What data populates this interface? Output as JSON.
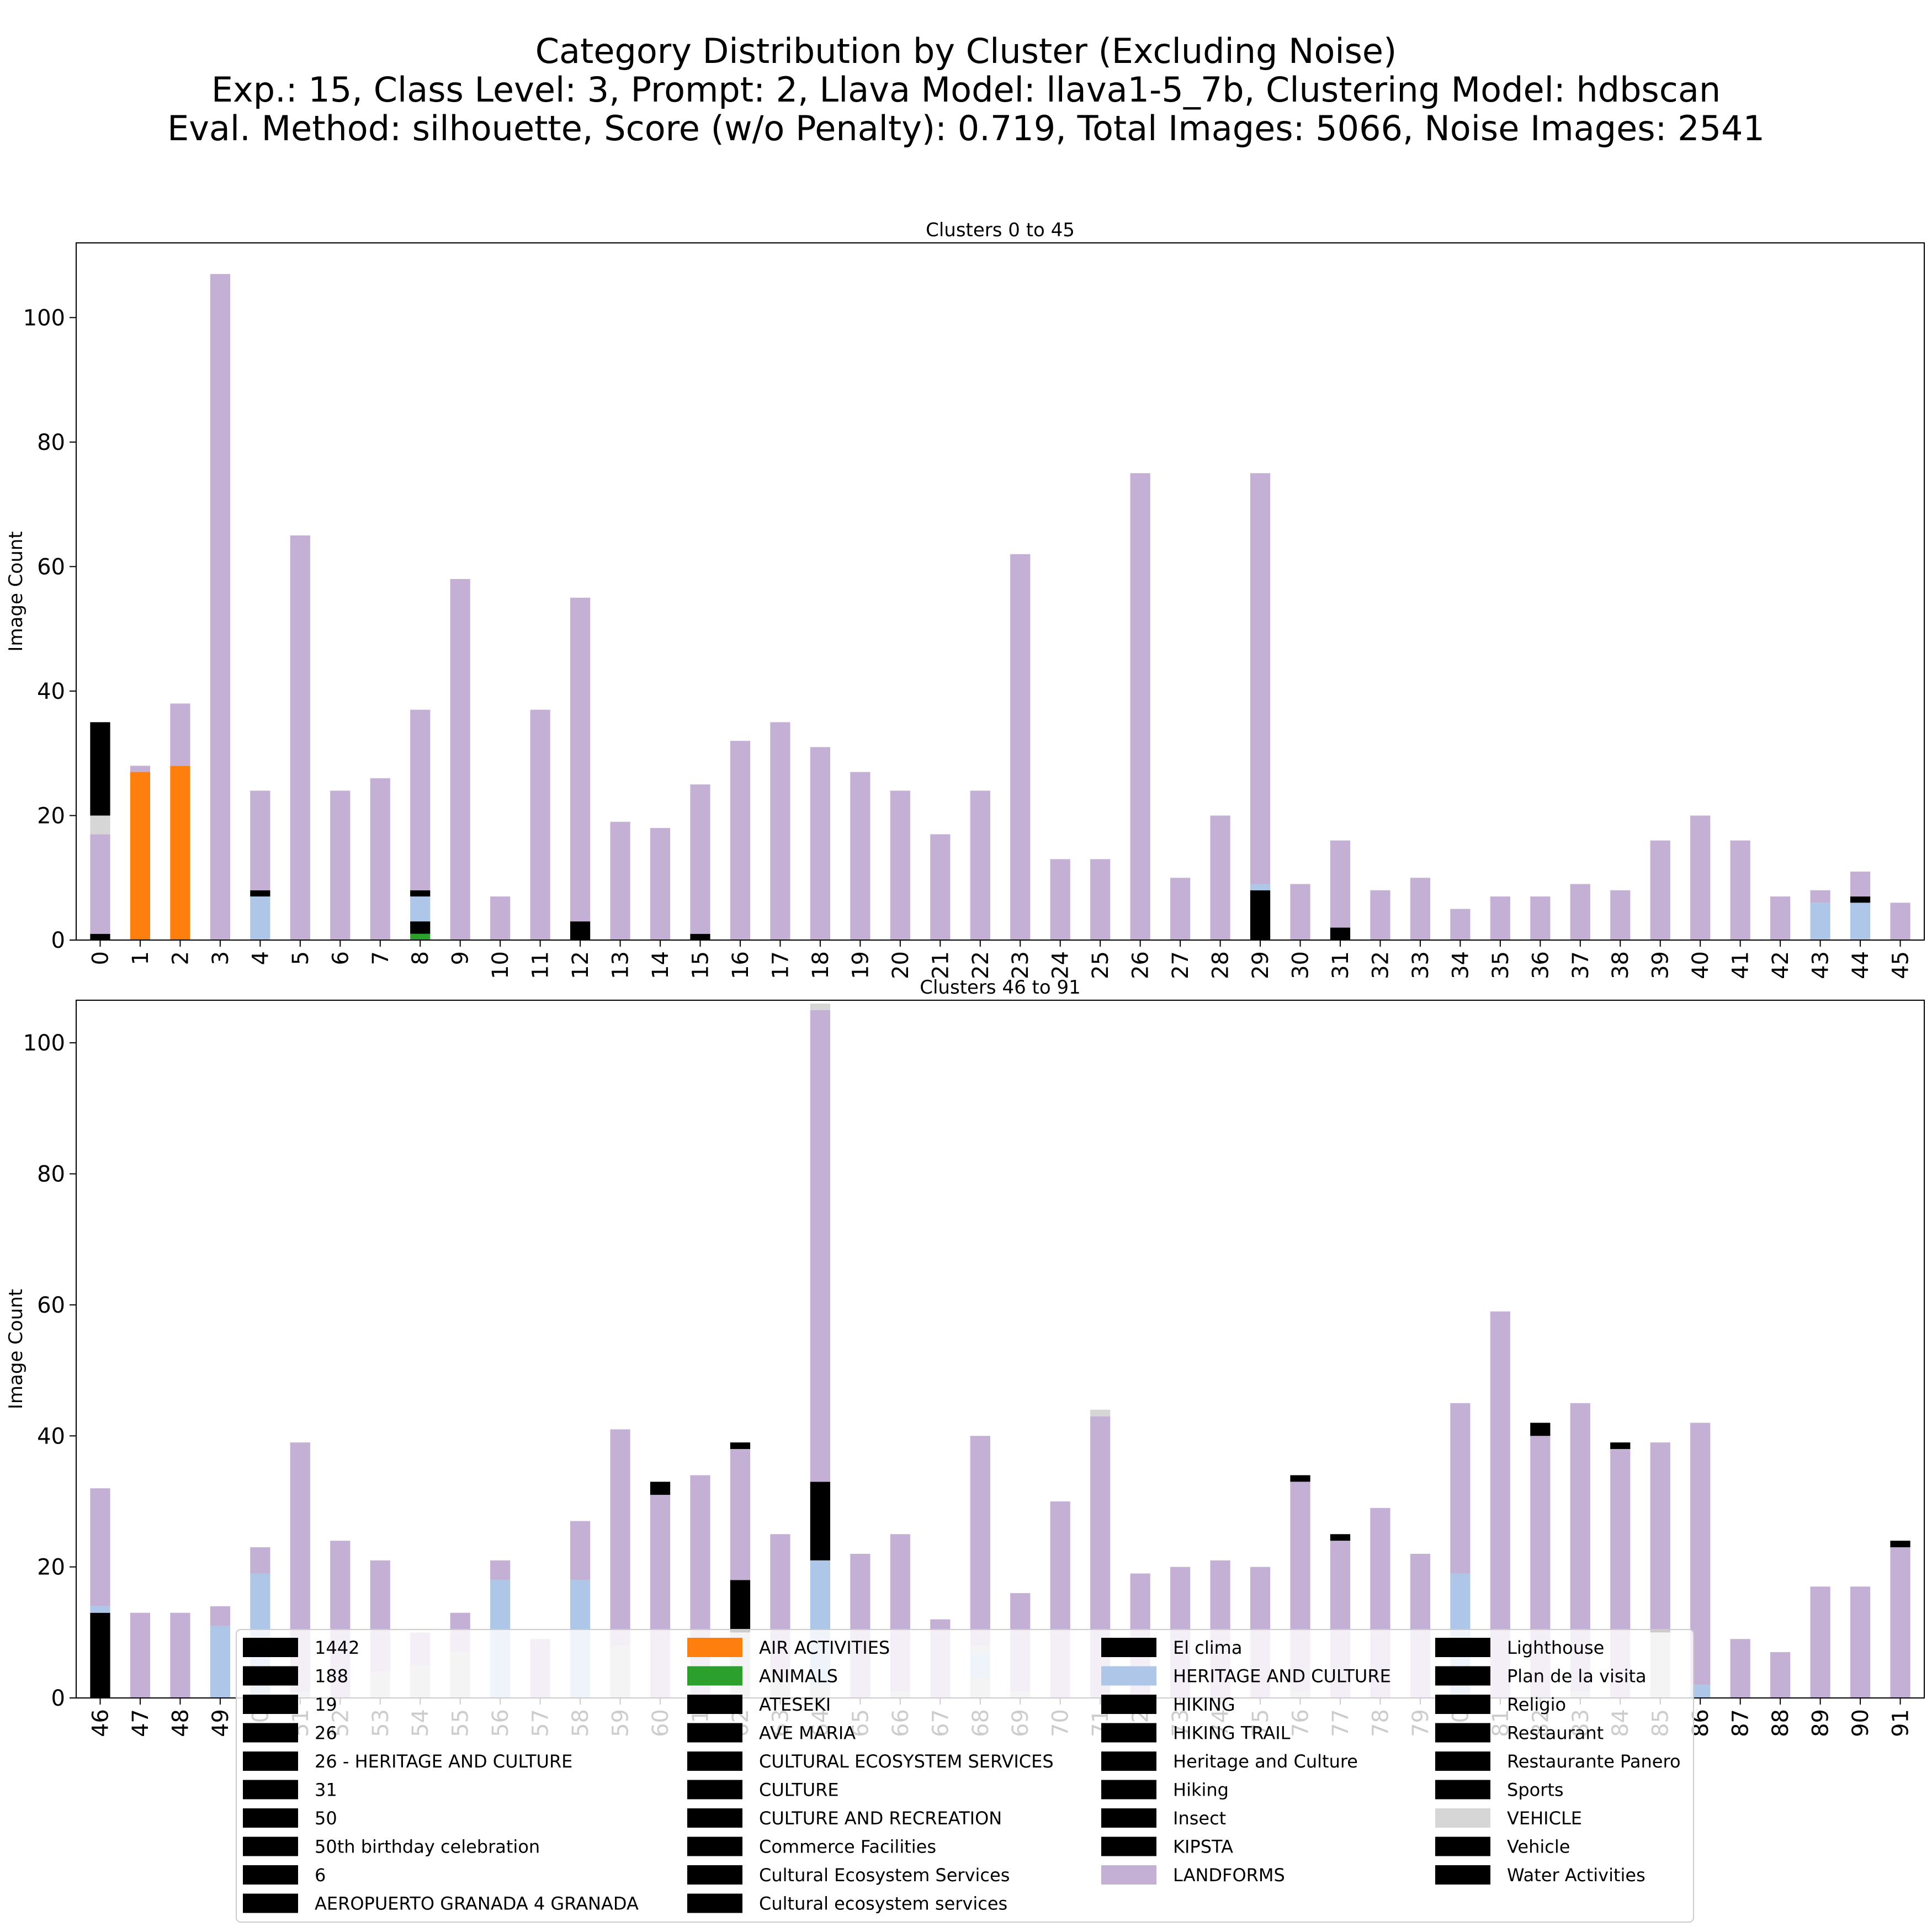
{
  "title": {
    "line1": "Category Distribution by Cluster (Excluding Noise)",
    "line2": "Exp.: 15, Class Level: 3, Prompt: 2, Llava Model: llava1-5_7b, Clustering Model: hdbscan",
    "line3": "Eval. Method: silhouette, Score (w/o Penalty): 0.719, Total Images: 5066, Noise Images: 2541"
  },
  "colors": {
    "black": "#000000",
    "orange": "#ff7f0e",
    "green": "#2ca02c",
    "lightblue": "#aec7e8",
    "lightgray": "#d6d6d6",
    "purple": "#c5b0d5",
    "silver": "#c7c7c7",
    "tick_green": "#008000",
    "tick_lightgreen": "#98df8a"
  },
  "legend": {
    "columns": [
      [
        {
          "label": "1442",
          "color": "#000000"
        },
        {
          "label": "188",
          "color": "#000000"
        },
        {
          "label": "19",
          "color": "#000000"
        },
        {
          "label": "26",
          "color": "#000000"
        },
        {
          "label": "26 - HERITAGE AND CULTURE",
          "color": "#000000"
        },
        {
          "label": "31",
          "color": "#000000"
        },
        {
          "label": "50",
          "color": "#000000"
        },
        {
          "label": "50th birthday celebration",
          "color": "#000000"
        },
        {
          "label": "6",
          "color": "#000000"
        },
        {
          "label": "AEROPUERTO GRANADA 4 GRANADA",
          "color": "#000000"
        }
      ],
      [
        {
          "label": "AIR ACTIVITIES",
          "color": "#ff7f0e"
        },
        {
          "label": "ANIMALS",
          "color": "#2ca02c"
        },
        {
          "label": "ATESEKI",
          "color": "#000000"
        },
        {
          "label": "AVE MARIA",
          "color": "#000000"
        },
        {
          "label": "CULTURAL ECOSYSTEM SERVICES",
          "color": "#000000"
        },
        {
          "label": "CULTURE",
          "color": "#000000"
        },
        {
          "label": "CULTURE AND RECREATION",
          "color": "#000000"
        },
        {
          "label": "Commerce Facilities",
          "color": "#000000"
        },
        {
          "label": "Cultural Ecosystem Services",
          "color": "#000000"
        },
        {
          "label": "Cultural ecosystem services",
          "color": "#000000"
        }
      ],
      [
        {
          "label": "El clima",
          "color": "#000000"
        },
        {
          "label": "HERITAGE AND CULTURE",
          "color": "#aec7e8"
        },
        {
          "label": "HIKING",
          "color": "#000000"
        },
        {
          "label": "HIKING TRAIL",
          "color": "#000000"
        },
        {
          "label": "Heritage and Culture",
          "color": "#000000"
        },
        {
          "label": "Hiking",
          "color": "#000000"
        },
        {
          "label": "Insect",
          "color": "#000000"
        },
        {
          "label": "KIPSTA",
          "color": "#000000"
        },
        {
          "label": "LANDFORMS",
          "color": "#c5b0d5"
        }
      ],
      [
        {
          "label": "Lighthouse",
          "color": "#000000"
        },
        {
          "label": "Plan de la visita",
          "color": "#000000"
        },
        {
          "label": "Religio",
          "color": "#000000"
        },
        {
          "label": "Restaurant",
          "color": "#000000"
        },
        {
          "label": "Restaurante Panero",
          "color": "#000000"
        },
        {
          "label": "Sports",
          "color": "#000000"
        },
        {
          "label": "VEHICLE",
          "color": "#d6d6d6"
        },
        {
          "label": "Vehicle",
          "color": "#000000"
        },
        {
          "label": "Water Activities",
          "color": "#000000"
        }
      ]
    ]
  },
  "chart_data": [
    {
      "type": "bar",
      "stacked": true,
      "title": "Clusters 0 to 45",
      "ylabel": "Image Count",
      "ylim": [
        0,
        112
      ],
      "yticks": [
        0,
        20,
        40,
        60,
        80,
        100
      ],
      "categories": [
        "0",
        "1",
        "2",
        "3",
        "4",
        "5",
        "6",
        "7",
        "8",
        "9",
        "10",
        "11",
        "12",
        "13",
        "14",
        "15",
        "16",
        "17",
        "18",
        "19",
        "20",
        "21",
        "22",
        "23",
        "24",
        "25",
        "26",
        "27",
        "28",
        "29",
        "30",
        "31",
        "32",
        "33",
        "34",
        "35",
        "36",
        "37",
        "38",
        "39",
        "40",
        "41",
        "42",
        "43",
        "44",
        "45"
      ],
      "tick_colors": [
        "#000000",
        "#008000",
        "#000000",
        "#008000",
        "#000000",
        "#008000",
        "#008000",
        "#008000",
        "#008000",
        "#008000",
        "#008000",
        "#008000",
        "#008000",
        "#008000",
        "#008000",
        "#008000",
        "#008000",
        "#008000",
        "#008000",
        "#008000",
        "#008000",
        "#008000",
        "#008000",
        "#008000",
        "#008000",
        "#008000",
        "#008000",
        "#008000",
        "#008000",
        "#008000",
        "#008000",
        "#008000",
        "#008000",
        "#008000",
        "#008000",
        "#008000",
        "#008000",
        "#008000",
        "#008000",
        "#008000",
        "#008000",
        "#008000",
        "#008000",
        "#000000",
        "#000000",
        "#008000"
      ],
      "bars": [
        [
          [
            1,
            "#000000"
          ],
          [
            16,
            "#c5b0d5"
          ],
          [
            3,
            "#d6d6d6"
          ],
          [
            15,
            "#000000"
          ]
        ],
        [
          [
            27,
            "#ff7f0e"
          ],
          [
            1,
            "#c5b0d5"
          ]
        ],
        [
          [
            28,
            "#ff7f0e"
          ],
          [
            10,
            "#c5b0d5"
          ]
        ],
        [
          [
            107,
            "#c5b0d5"
          ]
        ],
        [
          [
            7,
            "#aec7e8"
          ],
          [
            1,
            "#000000"
          ],
          [
            16,
            "#c5b0d5"
          ]
        ],
        [
          [
            65,
            "#c5b0d5"
          ]
        ],
        [
          [
            24,
            "#c5b0d5"
          ]
        ],
        [
          [
            26,
            "#c5b0d5"
          ]
        ],
        [
          [
            1,
            "#2ca02c"
          ],
          [
            2,
            "#000000"
          ],
          [
            4,
            "#aec7e8"
          ],
          [
            1,
            "#000000"
          ],
          [
            29,
            "#c5b0d5"
          ]
        ],
        [
          [
            58,
            "#c5b0d5"
          ]
        ],
        [
          [
            7,
            "#c5b0d5"
          ]
        ],
        [
          [
            37,
            "#c5b0d5"
          ]
        ],
        [
          [
            3,
            "#000000"
          ],
          [
            52,
            "#c5b0d5"
          ]
        ],
        [
          [
            19,
            "#c5b0d5"
          ]
        ],
        [
          [
            18,
            "#c5b0d5"
          ]
        ],
        [
          [
            1,
            "#000000"
          ],
          [
            24,
            "#c5b0d5"
          ]
        ],
        [
          [
            32,
            "#c5b0d5"
          ]
        ],
        [
          [
            35,
            "#c5b0d5"
          ]
        ],
        [
          [
            31,
            "#c5b0d5"
          ]
        ],
        [
          [
            27,
            "#c5b0d5"
          ]
        ],
        [
          [
            24,
            "#c5b0d5"
          ]
        ],
        [
          [
            17,
            "#c5b0d5"
          ]
        ],
        [
          [
            24,
            "#c5b0d5"
          ]
        ],
        [
          [
            62,
            "#c5b0d5"
          ]
        ],
        [
          [
            13,
            "#c5b0d5"
          ]
        ],
        [
          [
            13,
            "#c5b0d5"
          ]
        ],
        [
          [
            75,
            "#c5b0d5"
          ]
        ],
        [
          [
            10,
            "#c5b0d5"
          ]
        ],
        [
          [
            20,
            "#c5b0d5"
          ]
        ],
        [
          [
            8,
            "#000000"
          ],
          [
            1,
            "#aec7e8"
          ],
          [
            66,
            "#c5b0d5"
          ]
        ],
        [
          [
            9,
            "#c5b0d5"
          ]
        ],
        [
          [
            2,
            "#000000"
          ],
          [
            14,
            "#c5b0d5"
          ]
        ],
        [
          [
            8,
            "#c5b0d5"
          ]
        ],
        [
          [
            10,
            "#c5b0d5"
          ]
        ],
        [
          [
            5,
            "#c5b0d5"
          ]
        ],
        [
          [
            7,
            "#c5b0d5"
          ]
        ],
        [
          [
            7,
            "#c5b0d5"
          ]
        ],
        [
          [
            9,
            "#c5b0d5"
          ]
        ],
        [
          [
            8,
            "#c5b0d5"
          ]
        ],
        [
          [
            16,
            "#c5b0d5"
          ]
        ],
        [
          [
            20,
            "#c5b0d5"
          ]
        ],
        [
          [
            16,
            "#c5b0d5"
          ]
        ],
        [
          [
            7,
            "#c5b0d5"
          ]
        ],
        [
          [
            6,
            "#aec7e8"
          ],
          [
            2,
            "#c5b0d5"
          ]
        ],
        [
          [
            6,
            "#aec7e8"
          ],
          [
            1,
            "#000000"
          ],
          [
            4,
            "#c5b0d5"
          ]
        ],
        [
          [
            6,
            "#c5b0d5"
          ]
        ]
      ]
    },
    {
      "type": "bar",
      "stacked": true,
      "title": "Clusters 46 to 91",
      "ylabel": "Image Count",
      "ylim": [
        0,
        106.5
      ],
      "yticks": [
        0,
        20,
        40,
        60,
        80,
        100
      ],
      "categories": [
        "46",
        "47",
        "48",
        "49",
        "50",
        "51",
        "52",
        "53",
        "54",
        "55",
        "56",
        "57",
        "58",
        "59",
        "60",
        "61",
        "62",
        "63",
        "64",
        "65",
        "66",
        "67",
        "68",
        "69",
        "70",
        "71",
        "72",
        "73",
        "74",
        "75",
        "76",
        "77",
        "78",
        "79",
        "80",
        "81",
        "82",
        "83",
        "84",
        "85",
        "86",
        "87",
        "88",
        "89",
        "90",
        "91"
      ],
      "tick_colors": [
        "#000000",
        "#008000",
        "#008000",
        "#008000",
        "#008000",
        "#008000",
        "#008000",
        "#98df8a",
        "#c7c7c7",
        "#c7c7c7",
        "#98df8a",
        "#98df8a",
        "#c7c7c7",
        "#98df8a",
        "#98df8a",
        "#98df8a",
        "#98df8a",
        "#98df8a",
        "#98df8a",
        "#98df8a",
        "#98df8a",
        "#c7c7c7",
        "#98df8a",
        "#98df8a",
        "#98df8a",
        "#98df8a",
        "#98df8a",
        "#98df8a",
        "#98df8a",
        "#98df8a",
        "#98df8a",
        "#98df8a",
        "#c7c7c7",
        "#98df8a",
        "#98df8a",
        "#98df8a",
        "#98df8a",
        "#98df8a",
        "#98df8a",
        "#c7c7c7",
        "#008000",
        "#008000",
        "#008000",
        "#008000",
        "#008000",
        "#008000"
      ],
      "bars": [
        [
          [
            13,
            "#000000"
          ],
          [
            1,
            "#aec7e8"
          ],
          [
            18,
            "#c5b0d5"
          ]
        ],
        [
          [
            13,
            "#c5b0d5"
          ]
        ],
        [
          [
            13,
            "#c5b0d5"
          ]
        ],
        [
          [
            11,
            "#aec7e8"
          ],
          [
            3,
            "#c5b0d5"
          ]
        ],
        [
          [
            19,
            "#aec7e8"
          ],
          [
            4,
            "#c5b0d5"
          ]
        ],
        [
          [
            1,
            "#c7c7c7"
          ],
          [
            38,
            "#c5b0d5"
          ]
        ],
        [
          [
            24,
            "#c5b0d5"
          ]
        ],
        [
          [
            4,
            "#c7c7c7"
          ],
          [
            17,
            "#c5b0d5"
          ]
        ],
        [
          [
            5,
            "#c7c7c7"
          ],
          [
            5,
            "#c5b0d5"
          ]
        ],
        [
          [
            7,
            "#c7c7c7"
          ],
          [
            6,
            "#c5b0d5"
          ]
        ],
        [
          [
            18,
            "#aec7e8"
          ],
          [
            3,
            "#c5b0d5"
          ]
        ],
        [
          [
            9,
            "#c5b0d5"
          ]
        ],
        [
          [
            18,
            "#aec7e8"
          ],
          [
            9,
            "#c5b0d5"
          ]
        ],
        [
          [
            8,
            "#c7c7c7"
          ],
          [
            33,
            "#c5b0d5"
          ]
        ],
        [
          [
            31,
            "#c5b0d5"
          ],
          [
            2,
            "#000000"
          ]
        ],
        [
          [
            34,
            "#c5b0d5"
          ]
        ],
        [
          [
            10,
            "#c7c7c7"
          ],
          [
            8,
            "#000000"
          ],
          [
            20,
            "#c5b0d5"
          ],
          [
            1,
            "#000000"
          ]
        ],
        [
          [
            3,
            "#c7c7c7"
          ],
          [
            22,
            "#c5b0d5"
          ]
        ],
        [
          [
            2,
            "#c7c7c7"
          ],
          [
            19,
            "#aec7e8"
          ],
          [
            12,
            "#000000"
          ],
          [
            72,
            "#c5b0d5"
          ],
          [
            1,
            "#d6d6d6"
          ]
        ],
        [
          [
            22,
            "#c5b0d5"
          ]
        ],
        [
          [
            1,
            "#c7c7c7"
          ],
          [
            24,
            "#c5b0d5"
          ]
        ],
        [
          [
            12,
            "#c5b0d5"
          ]
        ],
        [
          [
            3,
            "#c7c7c7"
          ],
          [
            4,
            "#aec7e8"
          ],
          [
            1,
            "#c7c7c7"
          ],
          [
            32,
            "#c5b0d5"
          ]
        ],
        [
          [
            1,
            "#c7c7c7"
          ],
          [
            15,
            "#c5b0d5"
          ]
        ],
        [
          [
            30,
            "#c5b0d5"
          ]
        ],
        [
          [
            43,
            "#c5b0d5"
          ],
          [
            1,
            "#d6d6d6"
          ]
        ],
        [
          [
            19,
            "#c5b0d5"
          ]
        ],
        [
          [
            20,
            "#c5b0d5"
          ]
        ],
        [
          [
            21,
            "#c5b0d5"
          ]
        ],
        [
          [
            20,
            "#c5b0d5"
          ]
        ],
        [
          [
            1,
            "#c7c7c7"
          ],
          [
            32,
            "#c5b0d5"
          ],
          [
            1,
            "#000000"
          ]
        ],
        [
          [
            24,
            "#c5b0d5"
          ],
          [
            1,
            "#000000"
          ]
        ],
        [
          [
            29,
            "#c5b0d5"
          ]
        ],
        [
          [
            22,
            "#c5b0d5"
          ]
        ],
        [
          [
            19,
            "#aec7e8"
          ],
          [
            26,
            "#c5b0d5"
          ]
        ],
        [
          [
            59,
            "#c5b0d5"
          ]
        ],
        [
          [
            40,
            "#c5b0d5"
          ],
          [
            2,
            "#000000"
          ]
        ],
        [
          [
            1,
            "#c7c7c7"
          ],
          [
            44,
            "#c5b0d5"
          ]
        ],
        [
          [
            38,
            "#c5b0d5"
          ],
          [
            1,
            "#000000"
          ]
        ],
        [
          [
            10,
            "#c7c7c7"
          ],
          [
            0.5,
            "#000000"
          ],
          [
            28.5,
            "#c5b0d5"
          ]
        ],
        [
          [
            2,
            "#aec7e8"
          ],
          [
            40,
            "#c5b0d5"
          ]
        ],
        [
          [
            9,
            "#c5b0d5"
          ]
        ],
        [
          [
            7,
            "#c5b0d5"
          ]
        ],
        [
          [
            17,
            "#c5b0d5"
          ]
        ],
        [
          [
            17,
            "#c5b0d5"
          ]
        ],
        [
          [
            23,
            "#c5b0d5"
          ],
          [
            1,
            "#000000"
          ]
        ]
      ]
    }
  ]
}
